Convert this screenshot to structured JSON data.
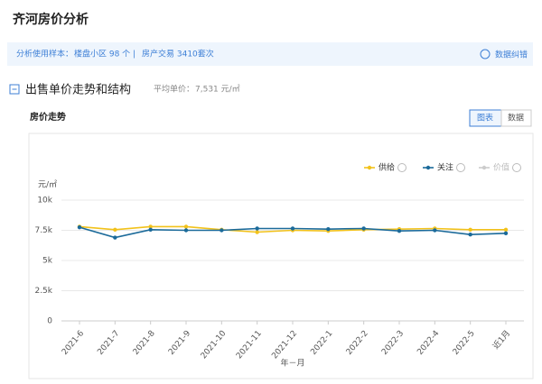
{
  "header": {
    "title": "齐河房价分析"
  },
  "info": {
    "label": "分析使用样本：",
    "communities": "楼盘小区 98 个",
    "separator": "|",
    "transactions": "房产交易 3410套次",
    "feedback": "数据纠错"
  },
  "section": {
    "title": "出售单价走势和结构",
    "avg_label": "平均单价：",
    "avg_value": "7,531 元/㎡"
  },
  "subsection": {
    "title": "房价走势",
    "tabs": [
      "图表",
      "数据"
    ]
  },
  "chart_data": {
    "type": "line",
    "y_unit": "元/㎡",
    "xlabel": "年－月",
    "categories": [
      "2021-6",
      "2021-7",
      "2021-8",
      "2021-9",
      "2021-10",
      "2021-11",
      "2021-12",
      "2022-1",
      "2022-2",
      "2022-3",
      "2022-4",
      "2022-5",
      "近1月"
    ],
    "series": [
      {
        "name": "供给",
        "color": "#f2c21b",
        "values": [
          7800,
          7550,
          7800,
          7800,
          7550,
          7350,
          7500,
          7450,
          7550,
          7600,
          7650,
          7550,
          7550
        ]
      },
      {
        "name": "关注",
        "color": "#1b6a9a",
        "values": [
          7750,
          6900,
          7550,
          7500,
          7500,
          7650,
          7650,
          7600,
          7650,
          7450,
          7500,
          7150,
          7250
        ]
      },
      {
        "name": "价值",
        "color": "#cccccc",
        "values": [
          null,
          null,
          null,
          null,
          null,
          null,
          null,
          null,
          null,
          null,
          null,
          null,
          null
        ]
      }
    ],
    "ylim": [
      0,
      10000
    ],
    "yticks": [
      {
        "value": 0,
        "label": "0"
      },
      {
        "value": 2500,
        "label": "2.5k"
      },
      {
        "value": 5000,
        "label": "5k"
      },
      {
        "value": 7500,
        "label": "7.5k"
      },
      {
        "value": 10000,
        "label": "10k"
      }
    ],
    "grid": true
  }
}
